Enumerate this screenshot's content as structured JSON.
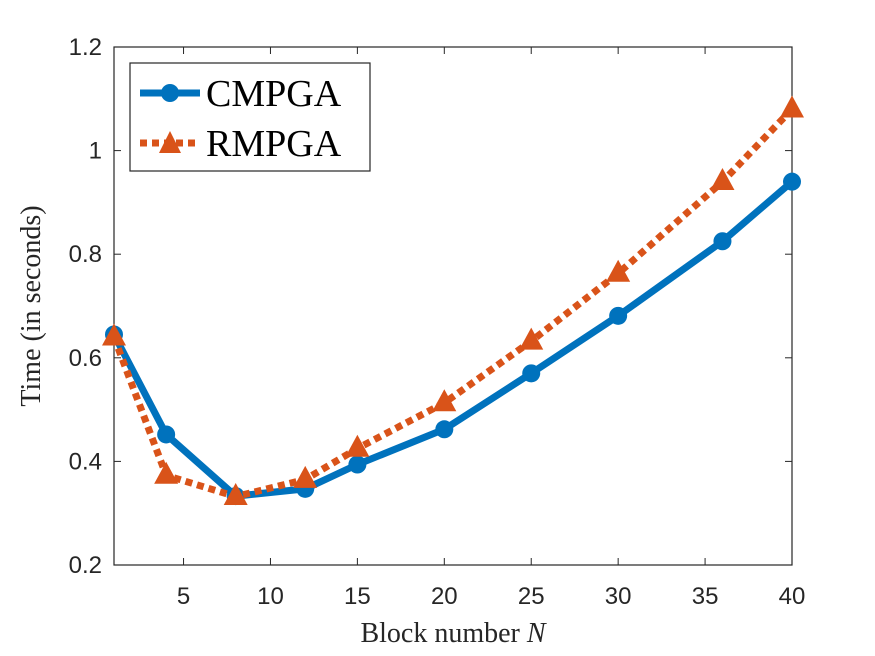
{
  "chart_data": {
    "type": "line",
    "title": "",
    "xlabel": "Block number",
    "xlabel_var": "N",
    "ylabel": "Time (in seconds)",
    "xlim": [
      1,
      40
    ],
    "ylim": [
      0.2,
      1.2
    ],
    "xticks": [
      5,
      10,
      15,
      20,
      25,
      30,
      35,
      40
    ],
    "yticks": [
      0.2,
      0.4,
      0.6,
      0.8,
      1,
      1.2
    ],
    "ytick_labels": [
      "0.2",
      "0.4",
      "0.6",
      "0.8",
      "1",
      "1.2"
    ],
    "grid": false,
    "legend_position": "top-left",
    "series": [
      {
        "name": "CMPGA",
        "color": "#0072BD",
        "marker": "circle",
        "line_style": "solid",
        "x": [
          1,
          4,
          8,
          12,
          15,
          20,
          25,
          30,
          36,
          40
        ],
        "values": [
          0.645,
          0.452,
          0.333,
          0.347,
          0.394,
          0.462,
          0.57,
          0.681,
          0.825,
          0.94
        ]
      },
      {
        "name": "RMPGA",
        "color": "#D95319",
        "marker": "triangle",
        "line_style": "dotted",
        "x": [
          1,
          4,
          8,
          12,
          15,
          20,
          25,
          30,
          36,
          40
        ],
        "values": [
          0.64,
          0.373,
          0.332,
          0.365,
          0.425,
          0.513,
          0.632,
          0.763,
          0.94,
          1.08
        ]
      }
    ]
  }
}
